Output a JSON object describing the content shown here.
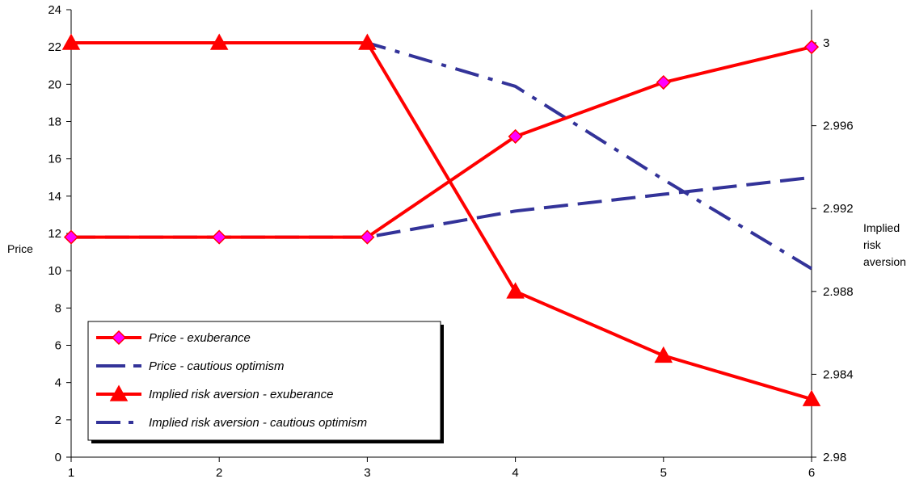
{
  "chart_data": {
    "type": "line",
    "x": [
      1,
      2,
      3,
      4,
      5,
      6
    ],
    "xlim": [
      1,
      6
    ],
    "ylabel": "Price",
    "ylim": [
      0,
      24
    ],
    "y_ticks": [
      "0",
      "2",
      "4",
      "6",
      "8",
      "10",
      "12",
      "14",
      "16",
      "18",
      "20",
      "22",
      "24"
    ],
    "y2label": [
      "Implied",
      "risk",
      "aversion"
    ],
    "y2lim": [
      2.98,
      3.0016
    ],
    "y2_ticks": [
      "2.98",
      "2.984",
      "2.988",
      "2.992",
      "2.996",
      "3"
    ],
    "y2_tick_values": [
      2.98,
      2.984,
      2.988,
      2.992,
      2.996,
      3.0
    ],
    "x_ticks": [
      "1",
      "2",
      "3",
      "4",
      "5",
      "6"
    ],
    "grid": false,
    "legend_position": "bottom-left",
    "series": [
      {
        "name": "Price - exuberance",
        "axis": "left",
        "values": [
          11.8,
          11.8,
          11.8,
          17.2,
          20.1,
          22.0
        ],
        "color": "#ff0000",
        "marker": "diamond",
        "marker_fill": "#ff00ff",
        "dash": "solid"
      },
      {
        "name": "Price - cautious optimism",
        "axis": "left",
        "values": [
          11.8,
          11.8,
          11.8,
          13.2,
          14.1,
          15.0
        ],
        "color": "#333399",
        "marker": "none",
        "dash": "long-dash"
      },
      {
        "name": "Implied risk aversion - exuberance",
        "axis": "right",
        "values": [
          3.0,
          3.0,
          3.0,
          2.988,
          2.9849,
          2.9828
        ],
        "color": "#ff0000",
        "marker": "triangle",
        "marker_fill": "#ff0000",
        "dash": "solid"
      },
      {
        "name": "Implied risk aversion - cautious optimism",
        "axis": "right",
        "values": [
          3.0,
          3.0,
          3.0,
          2.9979,
          2.9934,
          2.9891
        ],
        "color": "#333399",
        "marker": "none",
        "dash": "dash-dot"
      }
    ]
  }
}
